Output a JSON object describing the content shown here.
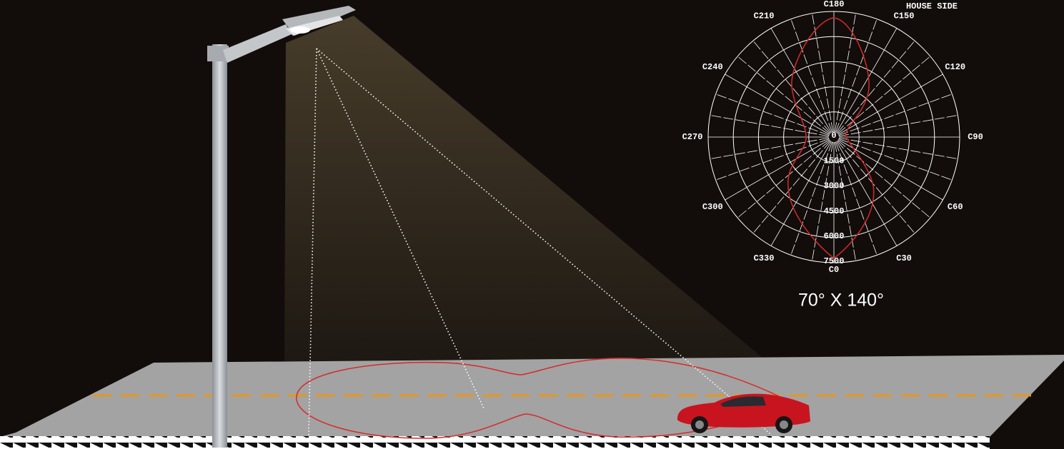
{
  "polar": {
    "corner_label": "HOUSE SIDE",
    "angle_labels": [
      "C0",
      "C30",
      "C60",
      "C90",
      "C120",
      "C150",
      "C180",
      "C210",
      "C240",
      "C270",
      "C300",
      "C330"
    ],
    "radial_labels": [
      0,
      1500,
      3000,
      4500,
      6000,
      7500
    ]
  },
  "caption": "70° X 140°"
}
